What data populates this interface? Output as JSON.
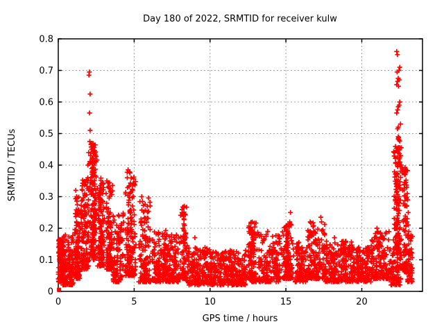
{
  "chart_data": {
    "type": "scatter",
    "title": "Day 180 of 2022, SRMTID for receiver kulw",
    "xlabel": "GPS time / hours",
    "ylabel": "SRMTID / TECUs",
    "xlim": [
      0,
      24
    ],
    "ylim": [
      0,
      0.8
    ],
    "xticks": [
      0,
      5,
      10,
      15,
      20
    ],
    "xtick_labels": [
      "0",
      "5",
      "10",
      "15",
      "20"
    ],
    "yticks": [
      0,
      0.1,
      0.2,
      0.3,
      0.4,
      0.5,
      0.6,
      0.7,
      0.8
    ],
    "ytick_labels": [
      "0",
      "0.1",
      "0.2",
      "0.3",
      "0.4",
      "0.5",
      "0.6",
      "0.7",
      "0.8"
    ],
    "grid": true,
    "legend": "none",
    "colors": {
      "marker": "#ff0000",
      "grid": "#a0a0a0",
      "axis": "#000000",
      "background": "#ffffff"
    },
    "marker": {
      "glyph": "plus",
      "size": 7,
      "stroke_width": 1.7
    },
    "origin_marker": {
      "glyph": "filled-square",
      "x": 0.05,
      "y": 0.005,
      "size": 6
    },
    "density_bands": [
      [
        0.0,
        0.35,
        105,
        0.03,
        0.17,
        1.3,
        0
      ],
      [
        0.3,
        1.0,
        135,
        0.02,
        0.18,
        1.5,
        0
      ],
      [
        1.0,
        1.5,
        120,
        0.04,
        0.3,
        1.7,
        1
      ],
      [
        1.5,
        2.0,
        130,
        0.07,
        0.36,
        1.4,
        0
      ],
      [
        2.0,
        2.6,
        170,
        0.1,
        0.47,
        1.3,
        1
      ],
      [
        2.55,
        3.1,
        140,
        0.08,
        0.36,
        1.5,
        1
      ],
      [
        3.1,
        3.65,
        120,
        0.07,
        0.35,
        1.8,
        1
      ],
      [
        3.6,
        4.3,
        105,
        0.03,
        0.25,
        1.6,
        0
      ],
      [
        4.3,
        5.2,
        160,
        0.05,
        0.38,
        1.9,
        1
      ],
      [
        5.2,
        6.2,
        135,
        0.03,
        0.3,
        2.0,
        1
      ],
      [
        6.2,
        7.1,
        120,
        0.03,
        0.2,
        1.7,
        0
      ],
      [
        7.0,
        8.0,
        135,
        0.03,
        0.18,
        1.8,
        0
      ],
      [
        8.0,
        8.6,
        90,
        0.04,
        0.27,
        1.9,
        1
      ],
      [
        8.5,
        10.0,
        170,
        0.02,
        0.14,
        1.5,
        0
      ],
      [
        10.0,
        12.4,
        300,
        0.02,
        0.13,
        1.5,
        0
      ],
      [
        12.4,
        13.2,
        130,
        0.03,
        0.22,
        1.7,
        1
      ],
      [
        13.2,
        14.6,
        165,
        0.03,
        0.18,
        1.7,
        0
      ],
      [
        14.6,
        15.6,
        140,
        0.04,
        0.22,
        1.8,
        1
      ],
      [
        15.6,
        16.4,
        105,
        0.03,
        0.16,
        1.6,
        0
      ],
      [
        16.4,
        17.6,
        160,
        0.04,
        0.22,
        1.8,
        0
      ],
      [
        17.6,
        19.4,
        225,
        0.03,
        0.16,
        1.6,
        0
      ],
      [
        19.4,
        20.6,
        150,
        0.03,
        0.14,
        1.5,
        0
      ],
      [
        20.6,
        21.9,
        165,
        0.04,
        0.19,
        1.7,
        0
      ],
      [
        21.9,
        22.6,
        70,
        0.02,
        0.12,
        1.5,
        0
      ],
      [
        22.0,
        22.65,
        140,
        0.12,
        0.46,
        1.2,
        1
      ],
      [
        22.6,
        23.05,
        80,
        0.06,
        0.4,
        1.5,
        1
      ],
      [
        23.0,
        23.35,
        55,
        0.03,
        0.18,
        1.5,
        0
      ]
    ],
    "outlier_points": [
      [
        0.05,
        0.15
      ],
      [
        0.1,
        0.155
      ],
      [
        0.15,
        0.15
      ],
      [
        1.15,
        0.32
      ],
      [
        1.2,
        0.3
      ],
      [
        1.95,
        0.4
      ],
      [
        2.05,
        0.695
      ],
      [
        2.02,
        0.685
      ],
      [
        2.1,
        0.625
      ],
      [
        2.06,
        0.565
      ],
      [
        2.1,
        0.51
      ],
      [
        2.08,
        0.475
      ],
      [
        2.15,
        0.465
      ],
      [
        2.2,
        0.45
      ],
      [
        2.0,
        0.44
      ],
      [
        2.12,
        0.43
      ],
      [
        2.3,
        0.42
      ],
      [
        2.25,
        0.405
      ],
      [
        2.35,
        0.4
      ],
      [
        3.2,
        0.35
      ],
      [
        3.3,
        0.33
      ],
      [
        3.15,
        0.31
      ],
      [
        4.6,
        0.385
      ],
      [
        4.72,
        0.375
      ],
      [
        4.55,
        0.36
      ],
      [
        5.0,
        0.34
      ],
      [
        4.9,
        0.32
      ],
      [
        5.5,
        0.3
      ],
      [
        5.55,
        0.285
      ],
      [
        8.3,
        0.27
      ],
      [
        8.35,
        0.245
      ],
      [
        8.28,
        0.23
      ],
      [
        9.0,
        0.17
      ],
      [
        12.7,
        0.215
      ],
      [
        12.78,
        0.22
      ],
      [
        12.65,
        0.2
      ],
      [
        13.8,
        0.19
      ],
      [
        15.25,
        0.22
      ],
      [
        15.35,
        0.21
      ],
      [
        15.3,
        0.25
      ],
      [
        16.6,
        0.22
      ],
      [
        17.3,
        0.235
      ],
      [
        17.35,
        0.22
      ],
      [
        18.2,
        0.17
      ],
      [
        21.0,
        0.2
      ],
      [
        21.05,
        0.19
      ],
      [
        22.3,
        0.76
      ],
      [
        22.35,
        0.75
      ],
      [
        22.5,
        0.71
      ],
      [
        22.45,
        0.7
      ],
      [
        22.32,
        0.695
      ],
      [
        22.4,
        0.675
      ],
      [
        22.46,
        0.67
      ],
      [
        22.36,
        0.665
      ],
      [
        22.3,
        0.655
      ],
      [
        22.42,
        0.65
      ],
      [
        22.5,
        0.6
      ],
      [
        22.46,
        0.59
      ],
      [
        22.4,
        0.585
      ],
      [
        22.36,
        0.575
      ],
      [
        22.3,
        0.565
      ],
      [
        22.55,
        0.53
      ],
      [
        22.4,
        0.52
      ],
      [
        22.36,
        0.515
      ],
      [
        22.4,
        0.49
      ],
      [
        22.43,
        0.487
      ],
      [
        22.39,
        0.483
      ],
      [
        22.45,
        0.48
      ],
      [
        22.5,
        0.476
      ],
      [
        22.6,
        0.455
      ],
      [
        22.36,
        0.445
      ],
      [
        22.4,
        0.44
      ],
      [
        22.56,
        0.43
      ],
      [
        22.5,
        0.425
      ],
      [
        22.46,
        0.42
      ],
      [
        22.52,
        0.41
      ],
      [
        22.6,
        0.4
      ],
      [
        22.66,
        0.39
      ],
      [
        22.72,
        0.385
      ],
      [
        22.78,
        0.375
      ],
      [
        22.85,
        0.37
      ],
      [
        22.9,
        0.345
      ],
      [
        22.96,
        0.33
      ],
      [
        23.0,
        0.31
      ],
      [
        22.9,
        0.3
      ],
      [
        23.02,
        0.29
      ],
      [
        22.96,
        0.27
      ],
      [
        23.06,
        0.25
      ],
      [
        23.0,
        0.23
      ],
      [
        23.06,
        0.21
      ],
      [
        23.1,
        0.19
      ],
      [
        23.05,
        0.17
      ],
      [
        23.1,
        0.15
      ],
      [
        23.16,
        0.12
      ],
      [
        23.1,
        0.1
      ],
      [
        23.2,
        0.08
      ],
      [
        23.16,
        0.06
      ],
      [
        23.2,
        0.05
      ],
      [
        23.26,
        0.04
      ]
    ]
  }
}
